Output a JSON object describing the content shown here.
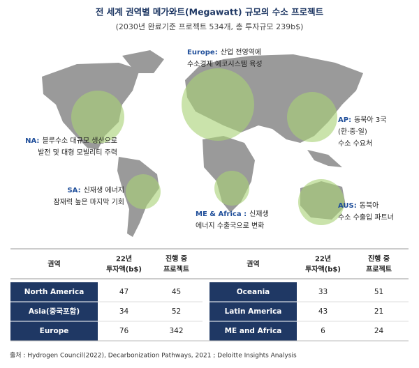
{
  "header": {
    "title": "전 세계 권역별 메가와트(Megawatt) 규모의 수소 프로젝트",
    "subtitle": "(2030년 완료기준 프로젝트 534개, 총 투자규모 239b$)"
  },
  "annotations": [
    {
      "label": "Europe:",
      "lines": [
        "산업 전영역에",
        "수소경제 에코시스템 육성"
      ]
    },
    {
      "label": "NA:",
      "lines": [
        "블루수소 대규모 생산으로",
        "발전 및 대형 모빌리티 주력"
      ]
    },
    {
      "label": "SA:",
      "lines": [
        "신재생 에너지",
        "잠재력 높은 마지막 기회"
      ]
    },
    {
      "label": "ME & Africa :",
      "lines": [
        "신재생",
        "에너지 수출국으로 변화"
      ]
    },
    {
      "label": "AP:",
      "lines": [
        "동북아 3국",
        "(한·중·일)",
        "수소 수요처"
      ]
    },
    {
      "label": "AUS:",
      "lines": [
        "동북아",
        "수소 수출입 파트너"
      ]
    }
  ],
  "table": {
    "header": [
      [
        "권역"
      ],
      [
        "22년",
        "투자액(b$)"
      ],
      [
        "진행 중",
        "프로젝트"
      ],
      [
        "권역"
      ],
      [
        "22년",
        "투자액(b$)"
      ],
      [
        "진행 중",
        "프로젝트"
      ]
    ],
    "rows": [
      [
        "North America",
        "47",
        "45",
        "Oceania",
        "33",
        "51"
      ],
      [
        "Asia(중국포함)",
        "34",
        "52",
        "Latin America",
        "43",
        "21"
      ],
      [
        "Europe",
        "76",
        "342",
        "ME and Africa",
        "6",
        "24"
      ]
    ]
  },
  "source": "출처 : Hydrogen Council(2022), Decarbonization Pathways, 2021 ; Deloitte Insights Analysis"
}
